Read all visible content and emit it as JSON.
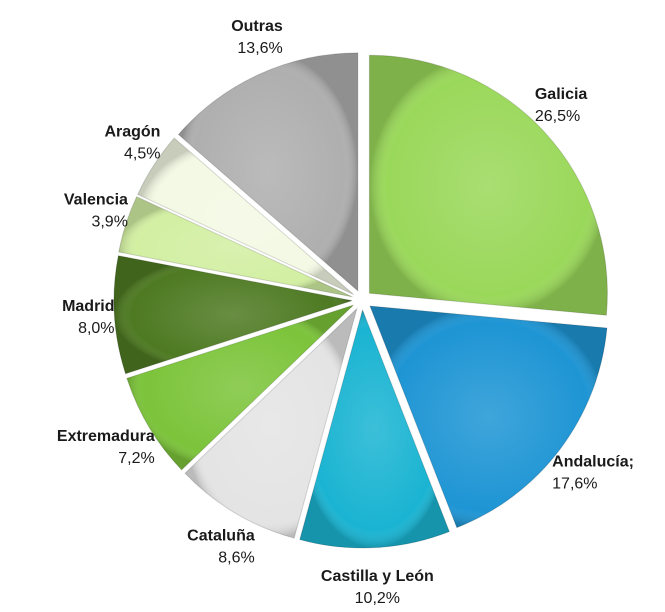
{
  "chart_data": {
    "type": "pie",
    "categories": [
      "Galicia",
      "Andalucía;",
      "Castilla y León",
      "Cataluña",
      "Extremadura",
      "Madrid",
      "Valencia",
      "Aragón",
      "Outras"
    ],
    "values": [
      26.5,
      17.6,
      10.2,
      8.6,
      7.2,
      8.0,
      3.9,
      4.5,
      13.6
    ],
    "value_labels": [
      "26,5%",
      "17,6%",
      "10,2%",
      "8,6%",
      "7,2%",
      "8,0%",
      "3,9%",
      "4,5%",
      "13,6%"
    ],
    "colors": [
      "#9ad85a",
      "#1e95d4",
      "#1ab4d2",
      "#e4e4e4",
      "#7cc43a",
      "#4e7a22",
      "#d2efa2",
      "#f3f9e4",
      "#afafaf"
    ]
  }
}
